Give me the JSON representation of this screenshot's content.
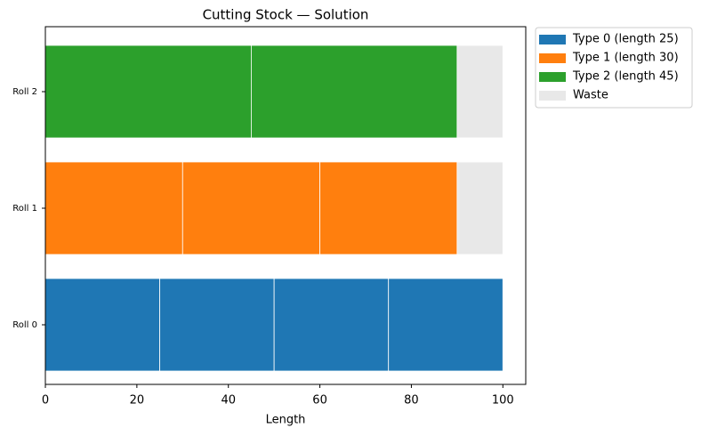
{
  "chart_data": {
    "type": "stacked-barh",
    "title": "Cutting Stock — Solution",
    "xlabel": "Length",
    "categories": [
      "Roll 0",
      "Roll 1",
      "Roll 2"
    ],
    "series": [
      {
        "name": "Type 0 (length 25)",
        "color": "#1f77b4",
        "values": [
          [
            25,
            25,
            25,
            25
          ],
          [],
          []
        ]
      },
      {
        "name": "Type 1 (length 30)",
        "color": "#ff7f0e",
        "values": [
          [],
          [
            30,
            30,
            30
          ],
          []
        ]
      },
      {
        "name": "Type 2 (length 45)",
        "color": "#2ca02c",
        "values": [
          [],
          [],
          [
            45,
            45
          ]
        ]
      },
      {
        "name": "Waste",
        "color": "#e8e8e8",
        "values": [
          [],
          [
            10
          ],
          [
            10
          ]
        ]
      }
    ],
    "xlim": [
      0,
      105
    ],
    "xticks": [
      0,
      20,
      40,
      60,
      80,
      100
    ],
    "legend": "outside-upper-right"
  }
}
